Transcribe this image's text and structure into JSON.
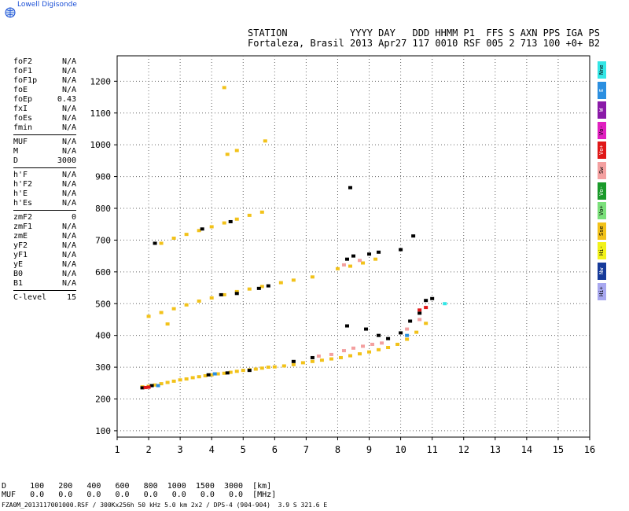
{
  "logo": {
    "text": "Lowell Digisonde",
    "icon": "globe-icon"
  },
  "header": {
    "line1": "STATION           YYYY DAY   DDD HHMM P1  FFS S AXN PPS IGA PS",
    "line2": "Fortaleza, Brasil 2013 Apr27 117 0010 RSF 005 2 713 100 +0+ B2"
  },
  "params": [
    {
      "group": 1,
      "items": [
        {
          "name": "foF2",
          "value": "N/A"
        },
        {
          "name": "foF1",
          "value": "N/A"
        },
        {
          "name": "foF1p",
          "value": "N/A"
        },
        {
          "name": "foE",
          "value": "N/A"
        },
        {
          "name": "foEp",
          "value": "0.43"
        },
        {
          "name": "fxI",
          "value": "N/A"
        },
        {
          "name": "foEs",
          "value": "N/A"
        },
        {
          "name": "fmin",
          "value": "N/A"
        }
      ]
    },
    {
      "group": 2,
      "items": [
        {
          "name": "MUF",
          "value": "N/A"
        },
        {
          "name": "M",
          "value": "N/A"
        },
        {
          "name": "D",
          "value": "3000"
        }
      ]
    },
    {
      "group": 3,
      "items": [
        {
          "name": "h'F",
          "value": "N/A"
        },
        {
          "name": "h'F2",
          "value": "N/A"
        },
        {
          "name": "h'E",
          "value": "N/A"
        },
        {
          "name": "h'Es",
          "value": "N/A"
        }
      ]
    },
    {
      "group": 4,
      "items": [
        {
          "name": "zmF2",
          "value": "0"
        },
        {
          "name": "zmF1",
          "value": "N/A"
        },
        {
          "name": "zmE",
          "value": "N/A"
        },
        {
          "name": "yF2",
          "value": "N/A"
        },
        {
          "name": "yF1",
          "value": "N/A"
        },
        {
          "name": "yE",
          "value": "N/A"
        },
        {
          "name": "B0",
          "value": "N/A"
        },
        {
          "name": "B1",
          "value": "N/A"
        }
      ]
    },
    {
      "group": 5,
      "items": [
        {
          "name": "C-level",
          "value": "15"
        }
      ]
    }
  ],
  "legend": [
    {
      "label": "Nne",
      "color": "#33e6e6"
    },
    {
      "label": "E",
      "color": "#2b8fe0"
    },
    {
      "label": "W",
      "color": "#8a1aa8"
    },
    {
      "label": "Vo-",
      "color": "#e020c0"
    },
    {
      "label": "Vo+",
      "color": "#e01818"
    },
    {
      "label": "Sw",
      "color": "#f4a0a0"
    },
    {
      "label": "Vo-",
      "color": "#1a9a2a"
    },
    {
      "label": "Vo+",
      "color": "#7be07b"
    },
    {
      "label": "Sse",
      "color": "#f2c21a"
    },
    {
      "label": "Hi-",
      "color": "#f2f21a"
    },
    {
      "label": "Nw",
      "color": "#163a9a"
    },
    {
      "label": "Hi+",
      "color": "#a8a8f0"
    }
  ],
  "footer": {
    "d_line": "D     100   200   400   600   800  1000  1500  3000  [km]",
    "muf_line": "MUF   0.0   0.0   0.0   0.0   0.0   0.0   0.0   0.0  [MHz]",
    "file_line": "FZA0M_2013117001000.RSF / 300Kx256h 50 kHz 5.0 km 2x2 / DPS-4 (904-904)  3.9 S 321.6 E"
  },
  "chart_data": {
    "type": "scatter",
    "title": "",
    "xlabel": "",
    "ylabel": "",
    "xlim": [
      1,
      16
    ],
    "ylim": [
      80,
      1280
    ],
    "x_ticks": [
      1,
      2,
      3,
      4,
      5,
      6,
      7,
      8,
      9,
      10,
      11,
      12,
      13,
      14,
      15,
      16
    ],
    "y_ticks": [
      100,
      200,
      300,
      400,
      500,
      600,
      700,
      800,
      900,
      1000,
      1100,
      1200
    ],
    "grid": true,
    "series": [
      {
        "color": "#f2c21a",
        "points": [
          [
            1.8,
            238
          ],
          [
            2.0,
            240
          ],
          [
            2.2,
            244
          ],
          [
            2.4,
            248
          ],
          [
            2.6,
            252
          ],
          [
            2.8,
            256
          ],
          [
            3.0,
            260
          ],
          [
            3.2,
            263
          ],
          [
            3.4,
            267
          ],
          [
            3.6,
            270
          ],
          [
            3.8,
            273
          ],
          [
            4.0,
            276
          ],
          [
            4.2,
            279
          ],
          [
            4.4,
            281
          ],
          [
            4.6,
            284
          ],
          [
            4.8,
            287
          ],
          [
            5.0,
            290
          ],
          [
            5.2,
            292
          ],
          [
            5.4,
            294
          ],
          [
            5.6,
            297
          ],
          [
            5.8,
            300
          ],
          [
            6.0,
            301
          ],
          [
            6.3,
            304
          ],
          [
            6.6,
            308
          ],
          [
            6.9,
            314
          ],
          [
            7.2,
            318
          ],
          [
            7.5,
            322
          ],
          [
            7.8,
            326
          ],
          [
            8.1,
            330
          ],
          [
            8.4,
            336
          ],
          [
            8.7,
            342
          ],
          [
            9.0,
            348
          ],
          [
            9.3,
            355
          ],
          [
            9.6,
            362
          ],
          [
            9.9,
            372
          ],
          [
            10.2,
            388
          ],
          [
            10.5,
            410
          ],
          [
            10.8,
            438
          ],
          [
            2.0,
            460
          ],
          [
            2.4,
            472
          ],
          [
            2.8,
            484
          ],
          [
            3.2,
            496
          ],
          [
            3.6,
            508
          ],
          [
            4.0,
            518
          ],
          [
            4.4,
            528
          ],
          [
            4.8,
            538
          ],
          [
            5.2,
            546
          ],
          [
            5.6,
            554
          ],
          [
            6.2,
            566
          ],
          [
            6.6,
            574
          ],
          [
            7.2,
            584
          ],
          [
            8.0,
            610
          ],
          [
            8.4,
            618
          ],
          [
            8.8,
            628
          ],
          [
            9.2,
            640
          ],
          [
            2.4,
            690
          ],
          [
            2.8,
            706
          ],
          [
            3.2,
            718
          ],
          [
            3.6,
            730
          ],
          [
            4.0,
            742
          ],
          [
            4.4,
            754
          ],
          [
            4.8,
            766
          ],
          [
            5.2,
            778
          ],
          [
            5.6,
            788
          ],
          [
            4.4,
            1180
          ],
          [
            4.5,
            970
          ],
          [
            4.8,
            982
          ],
          [
            5.7,
            1012
          ],
          [
            2.6,
            436
          ]
        ]
      },
      {
        "color": "#f4a0a0",
        "points": [
          [
            7.4,
            335
          ],
          [
            7.8,
            340
          ],
          [
            8.2,
            352
          ],
          [
            8.5,
            360
          ],
          [
            8.8,
            366
          ],
          [
            9.1,
            372
          ],
          [
            9.4,
            376
          ],
          [
            10.2,
            420
          ],
          [
            10.6,
            450
          ],
          [
            8.2,
            622
          ],
          [
            8.7,
            636
          ]
        ]
      },
      {
        "color": "#000000",
        "points": [
          [
            1.8,
            235
          ],
          [
            2.1,
            242
          ],
          [
            3.9,
            276
          ],
          [
            4.5,
            282
          ],
          [
            5.2,
            290
          ],
          [
            6.6,
            318
          ],
          [
            7.2,
            330
          ],
          [
            8.3,
            430
          ],
          [
            8.9,
            420
          ],
          [
            9.3,
            400
          ],
          [
            9.6,
            390
          ],
          [
            10.0,
            408
          ],
          [
            10.3,
            445
          ],
          [
            10.6,
            470
          ],
          [
            10.8,
            510
          ],
          [
            11.0,
            516
          ],
          [
            4.3,
            528
          ],
          [
            4.8,
            532
          ],
          [
            5.5,
            548
          ],
          [
            5.8,
            556
          ],
          [
            8.3,
            640
          ],
          [
            8.5,
            650
          ],
          [
            9.0,
            656
          ],
          [
            9.3,
            662
          ],
          [
            4.6,
            758
          ],
          [
            3.7,
            735
          ],
          [
            10.4,
            713
          ],
          [
            8.4,
            865
          ],
          [
            10.0,
            670
          ],
          [
            2.2,
            690
          ]
        ]
      },
      {
        "color": "#e01818",
        "points": [
          [
            1.9,
            236
          ],
          [
            2.0,
            237
          ],
          [
            10.6,
            480
          ],
          [
            10.8,
            488
          ]
        ]
      },
      {
        "color": "#2b8fe0",
        "points": [
          [
            2.3,
            242
          ],
          [
            4.1,
            279
          ],
          [
            10.2,
            400
          ]
        ]
      },
      {
        "color": "#33e6e6",
        "points": [
          [
            11.4,
            500
          ]
        ]
      }
    ]
  }
}
